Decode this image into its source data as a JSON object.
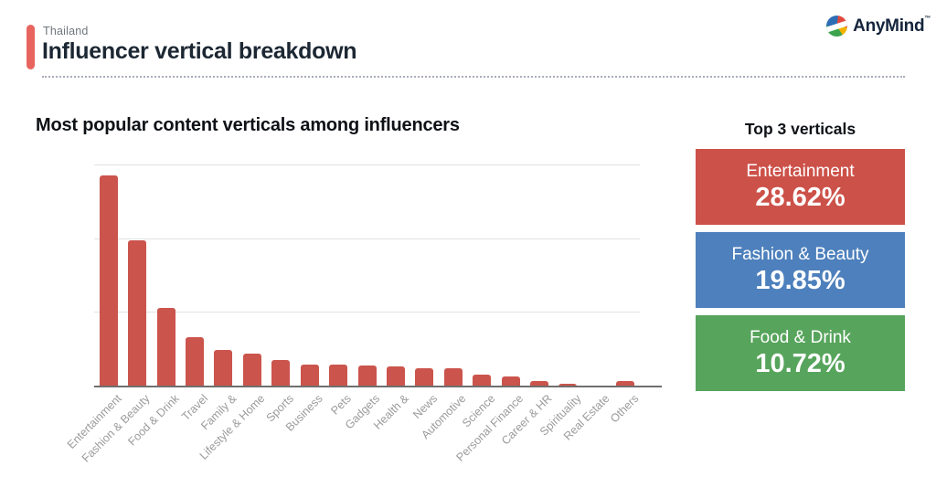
{
  "header": {
    "eyebrow": "Thailand",
    "title": "Influencer vertical breakdown",
    "accent_color": "#e8655f"
  },
  "logo": {
    "text": "AnyMind",
    "tm": "™",
    "colors": {
      "blue": "#2e6db5",
      "red": "#e2483d",
      "yellow": "#f2b200",
      "green": "#3ca34f"
    }
  },
  "chart_data": {
    "type": "bar",
    "title": "Most popular content verticals among influencers",
    "categories": [
      "Entertainment",
      "Fashion & Beauty",
      "Food & Drink",
      "Travel",
      "Family &",
      "Lifestyle & Home",
      "Sports",
      "Business",
      "Pets",
      "Gadgets",
      "Health &",
      "News",
      "Automotive",
      "Science",
      "Personal Finance",
      "Career & HR",
      "Spirituality",
      "Real Estate",
      "Others"
    ],
    "values": [
      28.62,
      19.85,
      10.72,
      6.7,
      4.9,
      4.5,
      3.6,
      3.0,
      3.0,
      2.9,
      2.7,
      2.5,
      2.5,
      1.6,
      1.4,
      0.7,
      0.4,
      0.1,
      0.7
    ],
    "unit": "%",
    "bar_color": "#cb544c",
    "ylim": [
      0,
      30
    ],
    "gridlines": [
      10,
      20,
      30
    ],
    "grid": true,
    "legend": false,
    "xlabel": "",
    "ylabel": "",
    "tick_label_color": "#9b9b9b"
  },
  "top3": {
    "title": "Top 3 verticals",
    "items": [
      {
        "label": "Entertainment",
        "value": "28.62%",
        "color": "#cc5149"
      },
      {
        "label": "Fashion & Beauty",
        "value": "19.85%",
        "color": "#4d80bc"
      },
      {
        "label": "Food & Drink",
        "value": "10.72%",
        "color": "#57a45c"
      }
    ]
  }
}
